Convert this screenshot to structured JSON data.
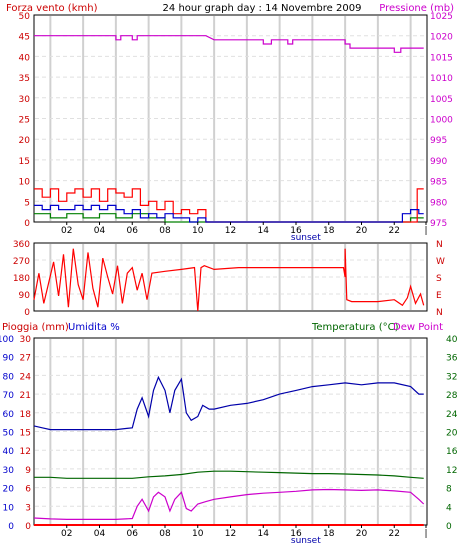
{
  "header": {
    "wind_label": "Forza vento (kmh)",
    "title": "24 hour graph day : 14 Novembre 2009",
    "pressure_label": "Pressione (mb)"
  },
  "colors": {
    "wind": "#ff0000",
    "gust": "#cc0000",
    "avg_wind": "#0000cc",
    "wind_green": "#008000",
    "pressure": "#cc00cc",
    "rain": "#ff0000",
    "humidity": "#0000aa",
    "temperature": "#006600",
    "dew_point": "#cc00cc",
    "grid_v": "#d0d0d0",
    "grid_h": "#e0e0e0"
  },
  "x_ticks": [
    "02",
    "04",
    "06",
    "08",
    "10",
    "12",
    "14",
    "16",
    "18",
    "20",
    "22",
    "|"
  ],
  "sunset_label": "sunset",
  "wind_chart": {
    "left_ticks": [
      "50",
      "45",
      "40",
      "35",
      "30",
      "25",
      "20",
      "15",
      "10",
      "5",
      "0"
    ],
    "pressure_ticks": [
      "1025",
      "1020",
      "1015",
      "1010",
      "1005",
      "1000",
      "995",
      "990",
      "985",
      "980",
      "975"
    ],
    "ylim": [
      0,
      50
    ],
    "pressure_lim": [
      975,
      1025
    ]
  },
  "direction_chart": {
    "left_ticks": [
      "360",
      "270",
      "180",
      "90",
      "0"
    ],
    "right_ticks": [
      "N",
      "W",
      "S",
      "E",
      "N"
    ],
    "ylim": [
      0,
      360
    ]
  },
  "bottom_chart": {
    "rain_label": "Pioggia (mm)",
    "humidity_label": "Umidita %",
    "temp_label": "Temperatura (°C)",
    "dew_label": "Dew Point",
    "humidity_ticks": [
      "100",
      "90",
      "80",
      "70",
      "60",
      "50",
      "40",
      "30",
      "20",
      "10",
      "0"
    ],
    "rain_ticks": [
      "30",
      "27",
      "24",
      "21",
      "18",
      "15",
      "12",
      "9",
      "6",
      "3",
      "0"
    ],
    "temp_ticks": [
      "40",
      "36",
      "32",
      "28",
      "24",
      "20",
      "16",
      "12",
      "8",
      "4",
      "0"
    ],
    "humidity_lim": [
      0,
      100
    ],
    "temp_lim": [
      0,
      40
    ]
  },
  "chart_data": [
    {
      "type": "line",
      "x_unit": "hour",
      "xlim": [
        0,
        24
      ],
      "series": [
        {
          "key": "pressure",
          "x": [
            0,
            5.0,
            5.0,
            5.3,
            5.3,
            6.0,
            6.0,
            6.3,
            6.3,
            10.5,
            11,
            14,
            14,
            14.5,
            14.5,
            15.5,
            15.5,
            15.8,
            15.8,
            19.0,
            19.0,
            19.3,
            19.3,
            22.0,
            22.0,
            22.4,
            22.4,
            23.8
          ],
          "y": [
            1020,
            1020,
            1019,
            1019,
            1020,
            1020,
            1019,
            1019,
            1020,
            1020,
            1019,
            1019,
            1018,
            1018,
            1019,
            1019,
            1018,
            1018,
            1019,
            1019,
            1018,
            1018,
            1017,
            1017,
            1016,
            1016,
            1017,
            1017
          ]
        },
        {
          "key": "wind_max",
          "x": [
            0,
            0.5,
            0.5,
            1.0,
            1.0,
            1.5,
            1.5,
            2.0,
            2.0,
            2.5,
            2.5,
            3.0,
            3.0,
            3.5,
            3.5,
            4.0,
            4.0,
            4.5,
            4.5,
            5.0,
            5.0,
            5.5,
            5.5,
            6.0,
            6.0,
            6.5,
            6.5,
            7.0,
            7.0,
            7.5,
            7.5,
            8.0,
            8.0,
            8.5,
            8.5,
            9.0,
            9.0,
            9.5,
            9.5,
            10.0,
            10.0,
            10.5,
            10.5,
            23.4,
            23.4,
            23.8
          ],
          "y": [
            8,
            8,
            6,
            6,
            8,
            8,
            5,
            5,
            7,
            7,
            8,
            8,
            6,
            6,
            8,
            8,
            5,
            5,
            8,
            8,
            7,
            7,
            6,
            6,
            8,
            8,
            4,
            4,
            5,
            5,
            3,
            3,
            5,
            5,
            2,
            2,
            3,
            3,
            2,
            2,
            3,
            3,
            0,
            0,
            8,
            8
          ]
        },
        {
          "key": "wind_avg",
          "x": [
            0,
            0.5,
            0.5,
            1.0,
            1.0,
            1.5,
            1.5,
            2.0,
            2.0,
            2.5,
            2.5,
            3.0,
            3.0,
            3.5,
            3.5,
            4.0,
            4.0,
            4.5,
            4.5,
            5.0,
            5.0,
            5.5,
            5.5,
            6.0,
            6.0,
            6.5,
            6.5,
            7.0,
            7.0,
            7.5,
            7.5,
            8.0,
            8.0,
            8.5,
            8.5,
            9.0,
            9.0,
            9.5,
            9.5,
            10.0,
            10.0,
            10.5,
            10.5,
            22.5,
            22.5,
            23.0,
            23.0,
            23.5,
            23.5,
            23.8
          ],
          "y": [
            4,
            4,
            3,
            3,
            4,
            4,
            3,
            3,
            3,
            3,
            4,
            4,
            3,
            3,
            4,
            4,
            3,
            3,
            4,
            4,
            3,
            3,
            2,
            2,
            3,
            3,
            1,
            1,
            2,
            2,
            1,
            1,
            2,
            2,
            1,
            1,
            1,
            1,
            0,
            0,
            1,
            1,
            0,
            0,
            2,
            2,
            3,
            3,
            2,
            2
          ]
        },
        {
          "key": "wind_min",
          "x": [
            0,
            1.0,
            1.0,
            2.0,
            2.0,
            3.0,
            3.0,
            4.0,
            4.0,
            5.0,
            5.0,
            6.0,
            6.0,
            7.0,
            7.0,
            8.0,
            8.0,
            23.0,
            23.0,
            23.8
          ],
          "y": [
            2,
            2,
            1,
            1,
            2,
            2,
            1,
            1,
            2,
            2,
            1,
            1,
            2,
            2,
            1,
            1,
            0,
            0,
            1,
            1
          ]
        }
      ]
    },
    {
      "type": "line",
      "x_unit": "hour",
      "xlim": [
        0,
        24
      ],
      "ylim": [
        0,
        360
      ],
      "series": [
        {
          "key": "wind_direction",
          "x": [
            0,
            0.3,
            0.6,
            0.9,
            1.2,
            1.5,
            1.8,
            2.1,
            2.4,
            2.7,
            3.0,
            3.3,
            3.6,
            3.9,
            4.2,
            4.5,
            4.8,
            5.1,
            5.4,
            5.7,
            6.0,
            6.3,
            6.6,
            6.9,
            7.2,
            8.0,
            9.0,
            9.8,
            10.0,
            10.2,
            10.4,
            11.0,
            12.5,
            14,
            16,
            18,
            18.9,
            19.0,
            19.0,
            19.1,
            19.4,
            21.0,
            22.0,
            22.5,
            22.8,
            23.0,
            23.3,
            23.6,
            23.8
          ],
          "y": [
            60,
            200,
            40,
            150,
            260,
            80,
            300,
            20,
            330,
            140,
            60,
            310,
            120,
            20,
            280,
            180,
            90,
            240,
            40,
            200,
            230,
            110,
            200,
            60,
            200,
            210,
            220,
            230,
            0,
            230,
            240,
            220,
            230,
            230,
            230,
            230,
            230,
            180,
            330,
            60,
            50,
            50,
            60,
            30,
            70,
            130,
            40,
            90,
            30
          ]
        }
      ]
    },
    {
      "type": "line",
      "x_unit": "hour",
      "xlim": [
        0,
        24
      ],
      "series": [
        {
          "key": "humidity",
          "x": [
            0,
            0.5,
            1,
            2,
            3,
            4,
            5,
            6,
            6.3,
            6.6,
            7,
            7.3,
            7.6,
            8,
            8.3,
            8.6,
            9,
            9.3,
            9.6,
            10,
            10.3,
            10.7,
            11,
            12,
            13,
            14,
            15,
            16,
            17,
            18,
            19,
            20,
            21,
            22,
            23,
            23.5,
            23.8
          ],
          "y": [
            53,
            52,
            51,
            51,
            51,
            51,
            51,
            52,
            62,
            68,
            58,
            72,
            79,
            72,
            60,
            72,
            78,
            60,
            56,
            58,
            64,
            62,
            62,
            64,
            65,
            67,
            70,
            72,
            74,
            75,
            76,
            75,
            76,
            76,
            74,
            70,
            70
          ]
        },
        {
          "key": "rain",
          "x": [
            0,
            23.8
          ],
          "y": [
            0,
            0
          ]
        },
        {
          "key": "temperature",
          "x": [
            0,
            1,
            2,
            3,
            4,
            5,
            6,
            7,
            8,
            9,
            10,
            11,
            12,
            13,
            14,
            15,
            16,
            17,
            18,
            19,
            20,
            21,
            22,
            23,
            23.8
          ],
          "y": [
            10.2,
            10.2,
            10.0,
            10.0,
            10.0,
            10.0,
            10.0,
            10.3,
            10.5,
            10.8,
            11.3,
            11.5,
            11.5,
            11.4,
            11.3,
            11.2,
            11.1,
            11.0,
            11.0,
            10.9,
            10.8,
            10.7,
            10.5,
            10.2,
            10.0
          ]
        },
        {
          "key": "dew_point",
          "x": [
            0,
            1,
            2,
            3,
            4,
            5,
            6,
            6.3,
            6.6,
            7,
            7.3,
            7.6,
            8,
            8.3,
            8.6,
            9,
            9.3,
            9.6,
            10,
            10.5,
            11,
            12,
            13,
            14,
            15,
            16,
            17,
            18,
            19,
            20,
            21,
            22,
            23,
            23.5,
            23.8
          ],
          "y": [
            1.5,
            1.3,
            1.2,
            1.2,
            1.2,
            1.2,
            1.4,
            4,
            5.5,
            3,
            6,
            7,
            6,
            3,
            5.5,
            7,
            3.5,
            3,
            4.5,
            5,
            5.5,
            6.0,
            6.5,
            6.8,
            7.0,
            7.2,
            7.5,
            7.6,
            7.5,
            7.4,
            7.5,
            7.3,
            7.0,
            5.5,
            4.5
          ]
        }
      ]
    }
  ]
}
